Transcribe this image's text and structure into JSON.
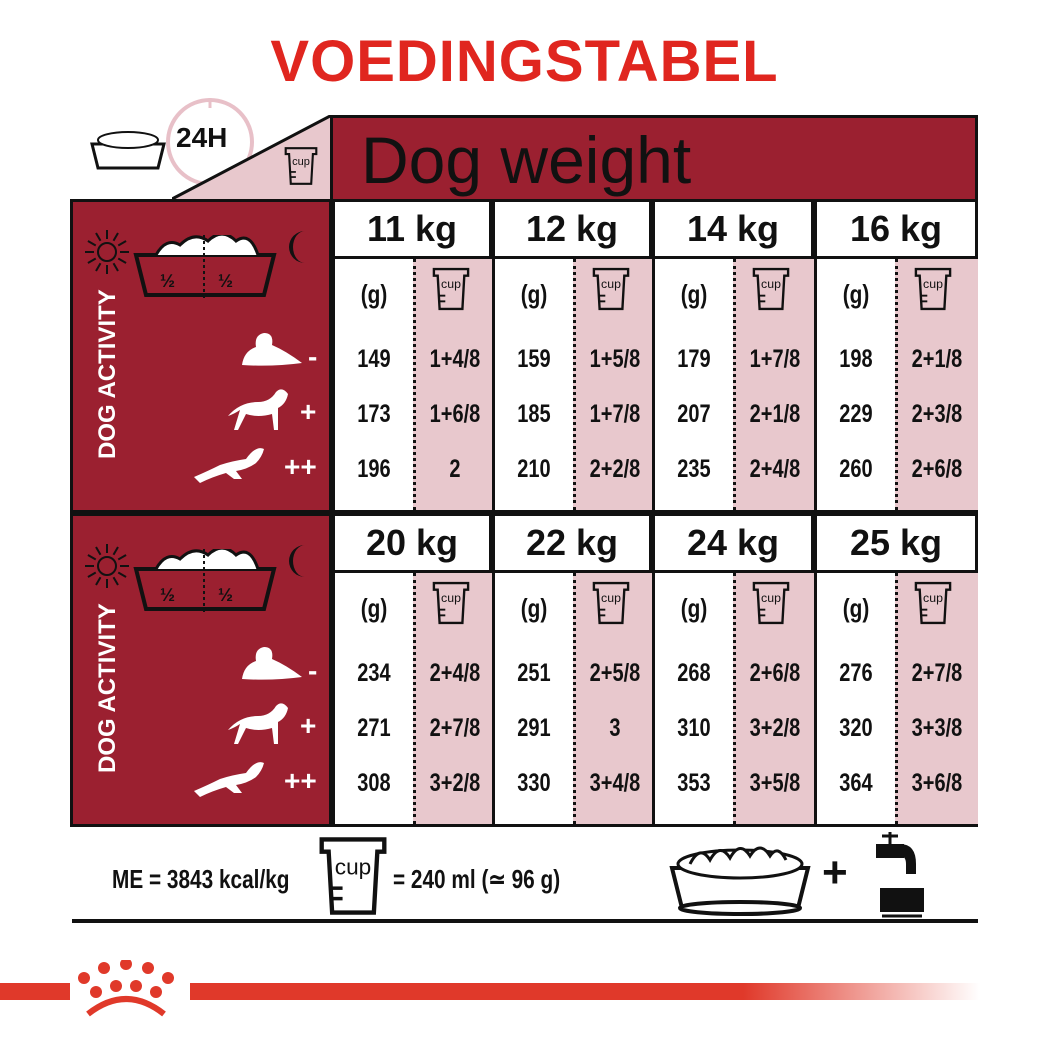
{
  "title": "VOEDINGSTABEL",
  "header": {
    "period": "24H",
    "cup_label": "cup",
    "dog_weight": "Dog weight"
  },
  "activity_label": "DOG ACTIVITY",
  "bowl_split": [
    "½",
    "½"
  ],
  "activity_levels": [
    "-",
    "+",
    "++"
  ],
  "column_headers": {
    "grams": "(g)",
    "cup": "cup"
  },
  "blocks": [
    {
      "weights": [
        {
          "weight": "11 kg",
          "grams": [
            "149",
            "173",
            "196"
          ],
          "cups": [
            "1+4/8",
            "1+6/8",
            "2"
          ]
        },
        {
          "weight": "12 kg",
          "grams": [
            "159",
            "185",
            "210"
          ],
          "cups": [
            "1+5/8",
            "1+7/8",
            "2+2/8"
          ]
        },
        {
          "weight": "14 kg",
          "grams": [
            "179",
            "207",
            "235"
          ],
          "cups": [
            "1+7/8",
            "2+1/8",
            "2+4/8"
          ]
        },
        {
          "weight": "16 kg",
          "grams": [
            "198",
            "229",
            "260"
          ],
          "cups": [
            "2+1/8",
            "2+3/8",
            "2+6/8"
          ]
        }
      ]
    },
    {
      "weights": [
        {
          "weight": "20 kg",
          "grams": [
            "234",
            "271",
            "308"
          ],
          "cups": [
            "2+4/8",
            "2+7/8",
            "3+2/8"
          ]
        },
        {
          "weight": "22 kg",
          "grams": [
            "251",
            "291",
            "330"
          ],
          "cups": [
            "2+5/8",
            "3",
            "3+4/8"
          ]
        },
        {
          "weight": "24 kg",
          "grams": [
            "268",
            "310",
            "353"
          ],
          "cups": [
            "2+6/8",
            "3+2/8",
            "3+5/8"
          ]
        },
        {
          "weight": "25 kg",
          "grams": [
            "276",
            "320",
            "364"
          ],
          "cups": [
            "2+7/8",
            "3+3/8",
            "3+6/8"
          ]
        }
      ]
    }
  ],
  "footer": {
    "energy": "ME = 3843 kcal/kg",
    "cup_label": "cup",
    "cup_equivalent": "= 240 ml (≃ 96 g)",
    "plus": "+"
  },
  "colors": {
    "title_red": "#e0261f",
    "panel_red": "#9b2030",
    "cup_pink": "#e8c8cd",
    "brand_red": "#e0392a"
  },
  "icons": [
    "food-bowl-icon",
    "clock-icon",
    "cup-icon",
    "sun-icon",
    "moon-icon",
    "dog-lying-icon",
    "dog-standing-icon",
    "dog-running-icon",
    "water-tap-icon",
    "royal-canin-crown-logo"
  ]
}
